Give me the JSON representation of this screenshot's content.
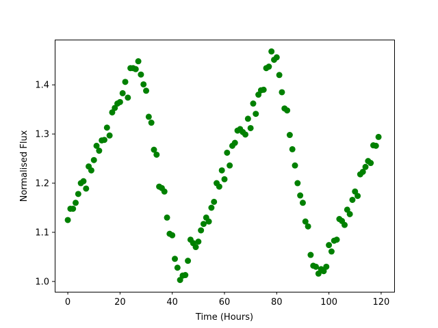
{
  "chart_data": {
    "type": "scatter",
    "xlabel": "Time (Hours)",
    "ylabel": "Normalised Flux",
    "xlim": [
      -5,
      125
    ],
    "ylim": [
      0.979,
      1.492
    ],
    "xticks": [
      0,
      20,
      40,
      60,
      80,
      100,
      120
    ],
    "yticks": [
      1.0,
      1.1,
      1.2,
      1.3,
      1.4
    ],
    "xtick_labels": [
      "0",
      "20",
      "40",
      "60",
      "80",
      "100",
      "120"
    ],
    "ytick_labels": [
      "1.0",
      "1.1",
      "1.2",
      "1.3",
      "1.4"
    ],
    "grid": false,
    "marker_color": "#008000",
    "series": [
      {
        "x": [
          0,
          1,
          2,
          3,
          4,
          5,
          6,
          7,
          8,
          9,
          10,
          11,
          12,
          13,
          14,
          15,
          16,
          17,
          18,
          19,
          20,
          21,
          22,
          23,
          24,
          25,
          26,
          27,
          28,
          29,
          30,
          31,
          32,
          33,
          34,
          35,
          36,
          37,
          38,
          39,
          40,
          41,
          42,
          43,
          44,
          45,
          46,
          47,
          48,
          49,
          50,
          51,
          52,
          53,
          54,
          55,
          56,
          57,
          58,
          59,
          60,
          61,
          62,
          63,
          64,
          65,
          66,
          67,
          68,
          69,
          70,
          71,
          72,
          73,
          74,
          75,
          76,
          77,
          78,
          79,
          80,
          81,
          82,
          83,
          84,
          85,
          86,
          87,
          88,
          89,
          90,
          91,
          92,
          93,
          94,
          95,
          96,
          97,
          98,
          99,
          100,
          101,
          102,
          103,
          104,
          105,
          106,
          107,
          108,
          109,
          110,
          111,
          112,
          113,
          114,
          115,
          116,
          117,
          118,
          119
        ],
        "y": [
          1.125,
          1.148,
          1.148,
          1.16,
          1.178,
          1.2,
          1.204,
          1.189,
          1.234,
          1.226,
          1.247,
          1.276,
          1.266,
          1.287,
          1.288,
          1.313,
          1.297,
          1.344,
          1.353,
          1.362,
          1.365,
          1.383,
          1.406,
          1.374,
          1.434,
          1.434,
          1.432,
          1.448,
          1.421,
          1.401,
          1.388,
          1.335,
          1.323,
          1.268,
          1.258,
          1.193,
          1.19,
          1.183,
          1.13,
          1.097,
          1.094,
          1.046,
          1.028,
          1.003,
          1.012,
          1.013,
          1.042,
          1.085,
          1.078,
          1.07,
          1.081,
          1.104,
          1.117,
          1.13,
          1.122,
          1.15,
          1.162,
          1.2,
          1.193,
          1.226,
          1.208,
          1.262,
          1.236,
          1.276,
          1.282,
          1.307,
          1.31,
          1.304,
          1.299,
          1.331,
          1.312,
          1.362,
          1.341,
          1.38,
          1.389,
          1.39,
          1.434,
          1.437,
          1.468,
          1.451,
          1.456,
          1.42,
          1.385,
          1.352,
          1.348,
          1.298,
          1.269,
          1.236,
          1.2,
          1.175,
          1.16,
          1.122,
          1.112,
          1.054,
          1.032,
          1.03,
          1.016,
          1.025,
          1.021,
          1.03,
          1.074,
          1.061,
          1.083,
          1.085,
          1.127,
          1.123,
          1.115,
          1.146,
          1.137,
          1.166,
          1.183,
          1.174,
          1.218,
          1.223,
          1.233,
          1.245,
          1.241,
          1.277,
          1.276,
          1.294
        ]
      }
    ]
  }
}
